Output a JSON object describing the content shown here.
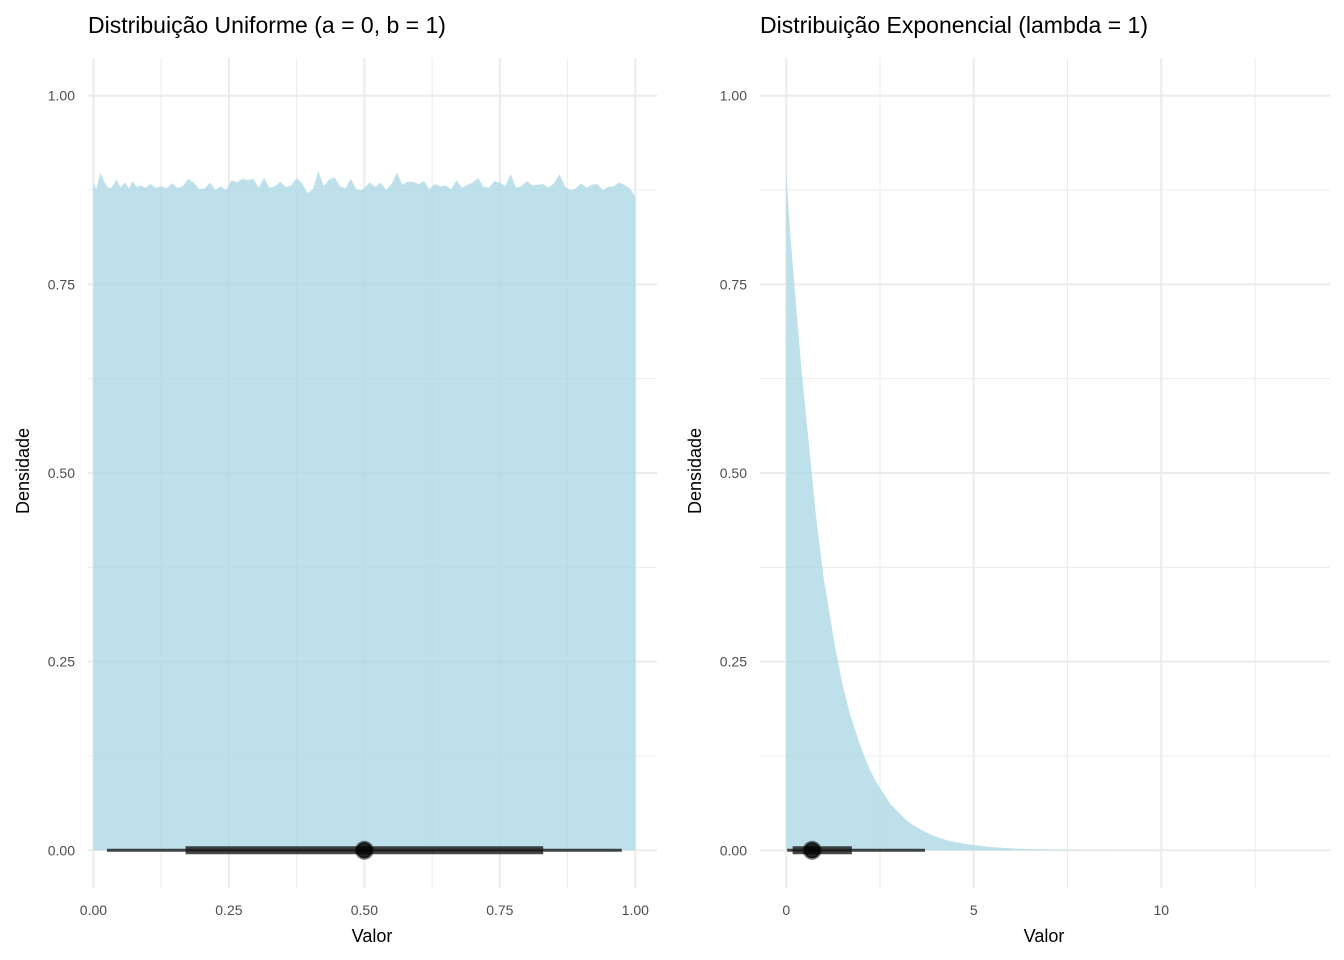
{
  "colors": {
    "fill": "#add8e6",
    "fill_opacity": 0.8,
    "interval": "#1a1a1a",
    "grid": "#ebebeb"
  },
  "chart_data": [
    {
      "type": "area",
      "subtype": "halfeye-density",
      "title": "Distribuição Uniforme (a = 0, b = 1)",
      "xlabel": "Valor",
      "ylabel": "Densidade",
      "xlim": [
        -0.01,
        1.04
      ],
      "ylim": [
        -0.05,
        1.05
      ],
      "x_ticks": [
        0,
        0.25,
        0.5,
        0.75,
        1
      ],
      "x_tick_labels": [
        "0.00",
        "0.25",
        "0.50",
        "0.75",
        "1.00"
      ],
      "y_ticks": [
        0,
        0.25,
        0.5,
        0.75,
        1
      ],
      "y_tick_labels": [
        "0.00",
        "0.25",
        "0.50",
        "0.75",
        "1.00"
      ],
      "grid": true,
      "density": {
        "x": [
          0,
          0.005,
          0.013,
          0.02,
          0.027,
          0.034,
          0.042,
          0.05,
          0.058,
          0.066,
          0.072,
          0.08,
          0.088,
          0.096,
          0.105,
          0.115,
          0.125,
          0.135,
          0.145,
          0.155,
          0.165,
          0.175,
          0.185,
          0.195,
          0.205,
          0.215,
          0.225,
          0.235,
          0.245,
          0.255,
          0.265,
          0.275,
          0.285,
          0.295,
          0.305,
          0.315,
          0.325,
          0.335,
          0.345,
          0.355,
          0.365,
          0.375,
          0.385,
          0.395,
          0.405,
          0.415,
          0.425,
          0.435,
          0.445,
          0.455,
          0.465,
          0.475,
          0.485,
          0.495,
          0.5,
          0.51,
          0.52,
          0.53,
          0.54,
          0.55,
          0.56,
          0.57,
          0.58,
          0.59,
          0.6,
          0.61,
          0.62,
          0.63,
          0.64,
          0.65,
          0.66,
          0.67,
          0.68,
          0.69,
          0.7,
          0.71,
          0.72,
          0.73,
          0.74,
          0.75,
          0.76,
          0.77,
          0.78,
          0.79,
          0.8,
          0.81,
          0.82,
          0.83,
          0.84,
          0.85,
          0.86,
          0.87,
          0.88,
          0.89,
          0.9,
          0.91,
          0.92,
          0.93,
          0.94,
          0.95,
          0.96,
          0.97,
          0.98,
          0.99,
          1.0
        ],
        "y": [
          0.885,
          0.876,
          0.898,
          0.886,
          0.878,
          0.878,
          0.889,
          0.879,
          0.885,
          0.877,
          0.887,
          0.879,
          0.881,
          0.878,
          0.883,
          0.878,
          0.88,
          0.877,
          0.884,
          0.878,
          0.88,
          0.89,
          0.885,
          0.876,
          0.877,
          0.885,
          0.875,
          0.88,
          0.875,
          0.888,
          0.885,
          0.89,
          0.888,
          0.89,
          0.878,
          0.891,
          0.878,
          0.88,
          0.886,
          0.879,
          0.881,
          0.891,
          0.884,
          0.871,
          0.876,
          0.9,
          0.88,
          0.889,
          0.892,
          0.88,
          0.877,
          0.89,
          0.876,
          0.875,
          0.878,
          0.885,
          0.879,
          0.885,
          0.875,
          0.883,
          0.898,
          0.882,
          0.886,
          0.886,
          0.883,
          0.887,
          0.876,
          0.883,
          0.88,
          0.881,
          0.876,
          0.888,
          0.878,
          0.882,
          0.885,
          0.891,
          0.879,
          0.878,
          0.887,
          0.885,
          0.88,
          0.896,
          0.878,
          0.88,
          0.887,
          0.881,
          0.882,
          0.883,
          0.878,
          0.884,
          0.896,
          0.88,
          0.875,
          0.877,
          0.884,
          0.878,
          0.882,
          0.883,
          0.875,
          0.879,
          0.88,
          0.885,
          0.882,
          0.877,
          0.866
        ]
      },
      "interval": {
        "point": 0.5,
        "inner": [
          0.17,
          0.83
        ],
        "outer": [
          0.025,
          0.975
        ]
      }
    },
    {
      "type": "area",
      "subtype": "halfeye-density",
      "title": "Distribuição Exponencial (lambda = 1)",
      "xlabel": "Valor",
      "ylabel": "Densidade",
      "xlim": [
        -0.7,
        14.5
      ],
      "ylim": [
        -0.05,
        1.05
      ],
      "x_ticks": [
        0,
        5,
        10
      ],
      "x_tick_labels": [
        "0",
        "5",
        "10"
      ],
      "x_minor_ticks": [
        2.5,
        7.5,
        12.5
      ],
      "y_ticks": [
        0,
        0.25,
        0.5,
        0.75,
        1
      ],
      "y_tick_labels": [
        "0.00",
        "0.25",
        "0.50",
        "0.75",
        "1.00"
      ],
      "grid": true,
      "density": {
        "x": [
          0,
          0.05,
          0.1,
          0.2,
          0.3,
          0.4,
          0.5,
          0.6,
          0.7,
          0.8,
          0.9,
          1.0,
          1.1,
          1.2,
          1.3,
          1.4,
          1.5,
          1.6,
          1.7,
          1.8,
          1.9,
          2.0,
          2.2,
          2.4,
          2.6,
          2.8,
          3.0,
          3.2,
          3.4,
          3.6,
          3.8,
          4.0,
          4.3,
          4.6,
          5.0,
          5.5,
          6.0,
          6.5,
          7.0,
          8.0,
          9.0,
          10.0,
          11.0,
          12.0,
          13.0,
          13.6
        ],
        "y": [
          0.9,
          0.86,
          0.82,
          0.76,
          0.7,
          0.64,
          0.59,
          0.54,
          0.49,
          0.44,
          0.4,
          0.36,
          0.33,
          0.3,
          0.27,
          0.245,
          0.22,
          0.2,
          0.18,
          0.165,
          0.15,
          0.135,
          0.11,
          0.09,
          0.075,
          0.06,
          0.05,
          0.04,
          0.033,
          0.027,
          0.022,
          0.018,
          0.013,
          0.01,
          0.007,
          0.004,
          0.0025,
          0.0015,
          0.001,
          0.0004,
          0.0002,
          0.0001,
          5e-05,
          2e-05,
          1e-05,
          0
        ]
      },
      "interval": {
        "point": 0.69,
        "inner": [
          0.17,
          1.75
        ],
        "outer": [
          0.025,
          3.7
        ]
      }
    }
  ]
}
